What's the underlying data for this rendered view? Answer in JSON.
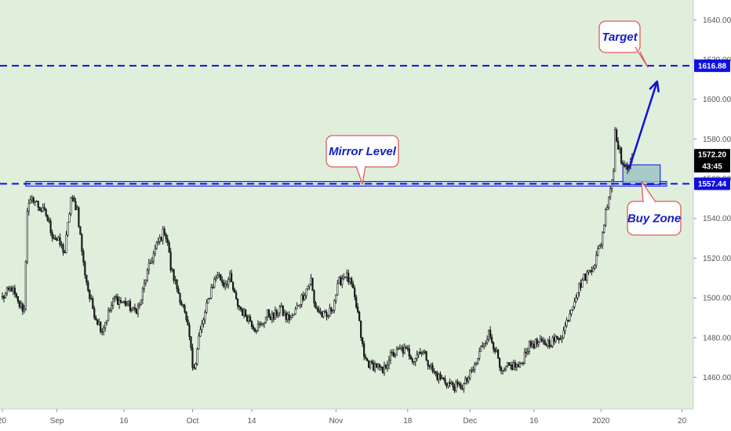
{
  "chart_data": {
    "type": "candlestick",
    "colors": {
      "background": "#dfefdc",
      "candle": "#1a1a1a",
      "level_line": "#1010dd",
      "zone_fill": "#9fc3c6",
      "callout_border": "#e05a5a",
      "callout_text": "#1020c0",
      "price_tag_bg": "#000000",
      "level_tag_bg": "#1010dd"
    },
    "y_axis": {
      "range": [
        1444,
        1650
      ],
      "ticks": [
        "1460.00",
        "1480.00",
        "1500.00",
        "1520.00",
        "1540.00",
        "1560.00",
        "1580.00",
        "1600.00",
        "1620.00",
        "1640.00"
      ],
      "tick_values": [
        1460,
        1480,
        1500,
        1520,
        1540,
        1560,
        1580,
        1600,
        1620,
        1640
      ],
      "position": "right"
    },
    "x_axis": {
      "ticks": [
        "20",
        "Sep",
        "16",
        "Oct",
        "14",
        "Nov",
        "18",
        "Dec",
        "16",
        "2020",
        "20"
      ],
      "tick_index": [
        0,
        35,
        78,
        122,
        160,
        214,
        260,
        300,
        341,
        384,
        436
      ]
    },
    "anchors": [
      [
        0,
        1500
      ],
      [
        6,
        1505
      ],
      [
        10,
        1497
      ],
      [
        14,
        1494
      ],
      [
        16,
        1545
      ],
      [
        20,
        1550
      ],
      [
        24,
        1545
      ],
      [
        28,
        1542
      ],
      [
        32,
        1532
      ],
      [
        36,
        1528
      ],
      [
        40,
        1523
      ],
      [
        44,
        1550
      ],
      [
        48,
        1545
      ],
      [
        52,
        1517
      ],
      [
        56,
        1500
      ],
      [
        60,
        1490
      ],
      [
        64,
        1484
      ],
      [
        68,
        1492
      ],
      [
        72,
        1500
      ],
      [
        76,
        1498
      ],
      [
        80,
        1497
      ],
      [
        84,
        1493
      ],
      [
        88,
        1496
      ],
      [
        92,
        1510
      ],
      [
        96,
        1520
      ],
      [
        100,
        1528
      ],
      [
        104,
        1534
      ],
      [
        106,
        1528
      ],
      [
        108,
        1515
      ],
      [
        112,
        1505
      ],
      [
        116,
        1495
      ],
      [
        120,
        1480
      ],
      [
        122,
        1466
      ],
      [
        124,
        1468
      ],
      [
        126,
        1480
      ],
      [
        130,
        1492
      ],
      [
        134,
        1505
      ],
      [
        138,
        1512
      ],
      [
        142,
        1507
      ],
      [
        146,
        1510
      ],
      [
        150,
        1498
      ],
      [
        154,
        1493
      ],
      [
        158,
        1490
      ],
      [
        162,
        1485
      ],
      [
        166,
        1486
      ],
      [
        170,
        1492
      ],
      [
        174,
        1490
      ],
      [
        178,
        1495
      ],
      [
        182,
        1490
      ],
      [
        186,
        1490
      ],
      [
        190,
        1497
      ],
      [
        194,
        1503
      ],
      [
        198,
        1509
      ],
      [
        200,
        1497
      ],
      [
        204,
        1492
      ],
      [
        208,
        1490
      ],
      [
        212,
        1496
      ],
      [
        216,
        1508
      ],
      [
        220,
        1512
      ],
      [
        224,
        1506
      ],
      [
        228,
        1492
      ],
      [
        232,
        1470
      ],
      [
        236,
        1466
      ],
      [
        240,
        1466
      ],
      [
        244,
        1462
      ],
      [
        248,
        1470
      ],
      [
        252,
        1472
      ],
      [
        256,
        1474
      ],
      [
        260,
        1473
      ],
      [
        264,
        1469
      ],
      [
        268,
        1474
      ],
      [
        272,
        1470
      ],
      [
        276,
        1463
      ],
      [
        280,
        1460
      ],
      [
        284,
        1458
      ],
      [
        288,
        1456
      ],
      [
        292,
        1455
      ],
      [
        296,
        1456
      ],
      [
        300,
        1461
      ],
      [
        304,
        1467
      ],
      [
        308,
        1477
      ],
      [
        312,
        1482
      ],
      [
        316,
        1475
      ],
      [
        320,
        1461
      ],
      [
        324,
        1465
      ],
      [
        328,
        1466
      ],
      [
        332,
        1465
      ],
      [
        336,
        1474
      ],
      [
        340,
        1477
      ],
      [
        344,
        1477
      ],
      [
        348,
        1477
      ],
      [
        352,
        1478
      ],
      [
        356,
        1479
      ],
      [
        360,
        1483
      ],
      [
        364,
        1493
      ],
      [
        368,
        1502
      ],
      [
        372,
        1509
      ],
      [
        376,
        1513
      ],
      [
        380,
        1518
      ],
      [
        384,
        1528
      ],
      [
        388,
        1548
      ],
      [
        390,
        1556
      ],
      [
        392,
        1564
      ],
      [
        393,
        1585
      ],
      [
        395,
        1577
      ],
      [
        397,
        1570
      ],
      [
        399,
        1564
      ],
      [
        401,
        1566
      ],
      [
        403,
        1571
      ],
      [
        404,
        1572.2
      ]
    ],
    "annotations": {
      "mirror_level": {
        "value": 1557.44,
        "label": "Mirror Level",
        "x_start_index": 15
      },
      "target": {
        "value": 1616.88,
        "label": "Target"
      },
      "buy_zone": {
        "label": "Buy Zone",
        "low": 1557,
        "high": 1567,
        "x_start_index": 398,
        "x_end_index": 422
      },
      "projection_arrow": {
        "from": [
          402,
          1565
        ],
        "to": [
          418,
          1609
        ]
      }
    },
    "price_tags": {
      "last_price": "1572.20",
      "countdown": "43:45",
      "target_level": "1616.88",
      "mirror_level": "1557.44"
    }
  }
}
